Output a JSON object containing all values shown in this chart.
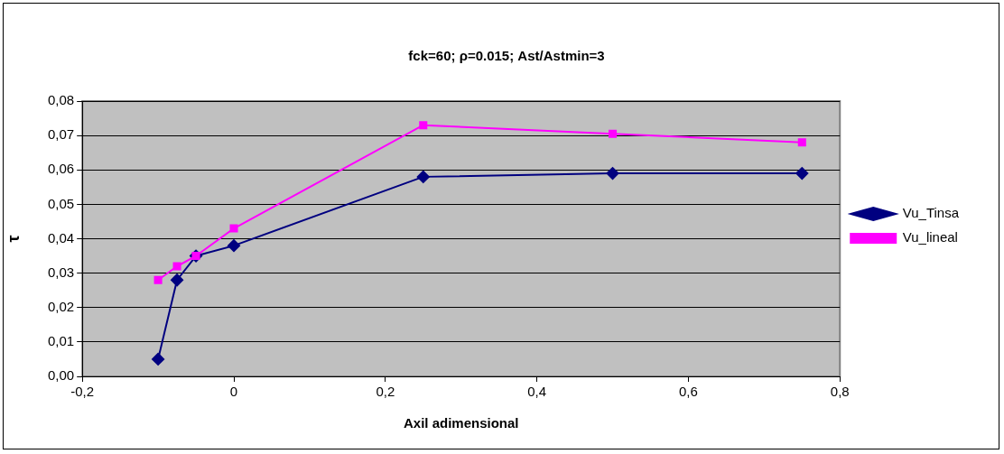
{
  "chart_data": {
    "type": "line",
    "title": "fck=60; ρ=0.015; Ast/Astmin=3",
    "xlabel": "Axil adimensional",
    "ylabel": "τ",
    "x": [
      -0.1,
      -0.075,
      -0.05,
      0,
      0.25,
      0.5,
      0.75
    ],
    "series": [
      {
        "name": "Vu_Tinsa",
        "color": "#000080",
        "marker": "diamond",
        "values": [
          0.005,
          0.028,
          0.035,
          0.038,
          0.058,
          0.059,
          0.059
        ]
      },
      {
        "name": "Vu_lineal",
        "color": "#ff00ff",
        "marker": "square",
        "values": [
          0.028,
          0.032,
          0.035,
          0.043,
          0.073,
          0.0705,
          0.068
        ]
      }
    ],
    "xlim": [
      -0.2,
      0.8
    ],
    "xticks": [
      {
        "value": -0.2,
        "label": "-0,2"
      },
      0,
      {
        "value": 0.2,
        "label": "0,2"
      },
      {
        "value": 0.4,
        "label": "0,4"
      },
      {
        "value": 0.6,
        "label": "0,6"
      },
      {
        "value": 0.8,
        "label": "0,8"
      }
    ],
    "ylim": [
      0,
      0.08
    ],
    "yticks": [
      {
        "value": 0,
        "label": "0,00"
      },
      {
        "value": 0.01,
        "label": "0,01"
      },
      {
        "value": 0.02,
        "label": "0,02"
      },
      {
        "value": 0.03,
        "label": "0,03"
      },
      {
        "value": 0.04,
        "label": "0,04"
      },
      {
        "value": 0.05,
        "label": "0,05"
      },
      {
        "value": 0.06,
        "label": "0,06"
      },
      {
        "value": 0.07,
        "label": "0,07"
      },
      {
        "value": 0.08,
        "label": "0,08"
      }
    ],
    "grid": "y",
    "legend": "right",
    "line_style": "solid"
  }
}
